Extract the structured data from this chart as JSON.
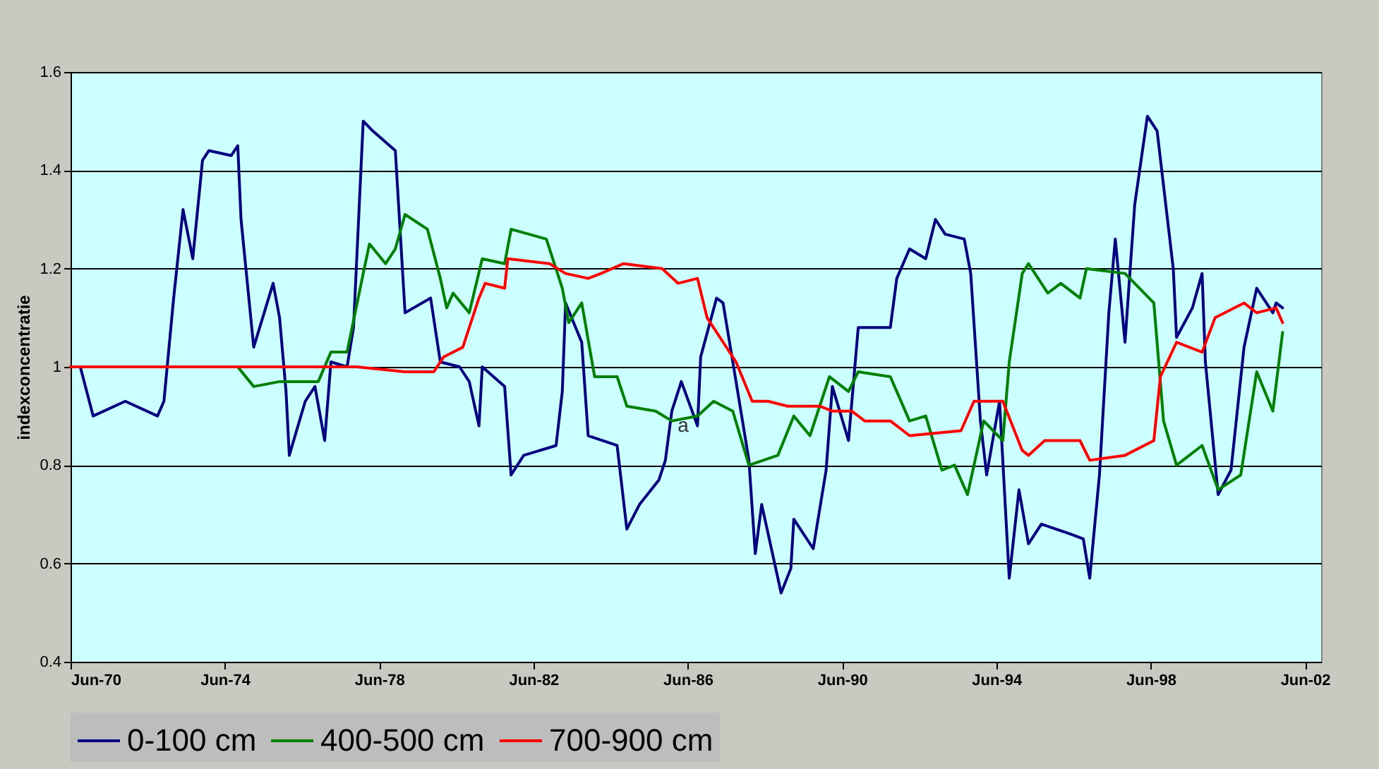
{
  "chart_data": {
    "type": "line",
    "ylabel": "indexconcentratie",
    "xlim": [
      "1970-06-01",
      "2002-11-01"
    ],
    "xticks": [
      {
        "value": "1970-06",
        "label": "Jun-70"
      },
      {
        "value": "1974-06",
        "label": "Jun-74"
      },
      {
        "value": "1978-06",
        "label": "Jun-78"
      },
      {
        "value": "1982-06",
        "label": "Jun-82"
      },
      {
        "value": "1986-06",
        "label": "Jun-86"
      },
      {
        "value": "1990-06",
        "label": "Jun-90"
      },
      {
        "value": "1994-06",
        "label": "Jun-94"
      },
      {
        "value": "1998-06",
        "label": "Jun-98"
      },
      {
        "value": "2002-06",
        "label": "Jun-02"
      }
    ],
    "ylim": [
      0.4,
      1.6
    ],
    "yticks": [
      0.4,
      0.6,
      0.8,
      1,
      1.2,
      1.4,
      1.6
    ],
    "grid": "y",
    "legend": "bottom",
    "annotations": [
      {
        "text": "a",
        "x": "1986-01",
        "y": 0.88
      }
    ],
    "series": [
      {
        "name": "0-100 cm",
        "color": "#000080",
        "x": [
          "1970-06",
          "1970-09",
          "1971-01",
          "1971-11",
          "1972-09",
          "1972-11",
          "1973-02",
          "1973-05",
          "1973-08",
          "1973-11",
          "1974-01",
          "1974-08",
          "1974-10",
          "1974-11",
          "1975-03",
          "1975-09",
          "1975-11",
          "1976-01",
          "1976-02",
          "1976-07",
          "1976-10",
          "1977-01",
          "1977-03",
          "1977-08",
          "1977-10",
          "1978-01",
          "1978-04",
          "1978-11",
          "1979-02",
          "1979-10",
          "1980-01",
          "1980-07",
          "1980-10",
          "1981-01",
          "1981-02",
          "1981-09",
          "1981-11",
          "1982-03",
          "1983-01",
          "1983-03",
          "1983-04",
          "1983-09",
          "1983-11",
          "1984-08",
          "1984-11",
          "1985-03",
          "1985-09",
          "1985-11",
          "1986-01",
          "1986-04",
          "1986-09",
          "1986-10",
          "1987-03",
          "1987-05",
          "1987-09",
          "1988-01",
          "1988-03",
          "1988-05",
          "1988-11",
          "1989-02",
          "1989-03",
          "1989-09",
          "1990-01",
          "1990-03",
          "1990-08",
          "1990-11",
          "1991-09",
          "1991-11",
          "1992-03",
          "1992-08",
          "1992-11",
          "1993-02",
          "1993-08",
          "1993-10",
          "1994-01",
          "1994-03",
          "1994-07",
          "1994-10",
          "1995-01",
          "1995-04",
          "1995-08",
          "1996-05",
          "1996-09",
          "1996-11",
          "1997-02",
          "1997-05",
          "1997-07",
          "1997-10",
          "1998-01",
          "1998-05",
          "1998-08",
          "1999-01",
          "1999-02",
          "1999-07",
          "1999-10",
          "1999-11",
          "2000-03",
          "2000-07",
          "2000-11",
          "2001-03",
          "2001-08",
          "2001-09",
          "2001-11"
        ],
        "values": [
          1.0,
          1.0,
          0.9,
          0.93,
          0.9,
          0.93,
          1.14,
          1.32,
          1.22,
          1.42,
          1.44,
          1.43,
          1.45,
          1.3,
          1.04,
          1.17,
          1.1,
          0.95,
          0.82,
          0.93,
          0.96,
          0.85,
          1.01,
          1.0,
          1.08,
          1.5,
          1.48,
          1.44,
          1.11,
          1.14,
          1.01,
          1.0,
          0.97,
          0.88,
          1.0,
          0.96,
          0.78,
          0.82,
          0.84,
          0.95,
          1.13,
          1.05,
          0.86,
          0.84,
          0.67,
          0.72,
          0.77,
          0.81,
          0.91,
          0.97,
          0.88,
          1.02,
          1.14,
          1.13,
          0.97,
          0.81,
          0.62,
          0.72,
          0.54,
          0.59,
          0.69,
          0.63,
          0.79,
          0.96,
          0.85,
          1.08,
          1.08,
          1.18,
          1.24,
          1.22,
          1.3,
          1.27,
          1.26,
          1.19,
          0.89,
          0.78,
          0.93,
          0.57,
          0.75,
          0.64,
          0.68,
          0.66,
          0.65,
          0.57,
          0.78,
          1.11,
          1.26,
          1.05,
          1.33,
          1.51,
          1.48,
          1.2,
          1.06,
          1.12,
          1.19,
          1.01,
          0.74,
          0.79,
          1.04,
          1.16,
          1.11,
          1.13,
          1.12
        ]
      },
      {
        "name": "400-500 cm",
        "color": "#008000",
        "x": [
          "1970-06",
          "1974-10",
          "1975-03",
          "1975-11",
          "1976-11",
          "1977-03",
          "1977-08",
          "1978-01",
          "1978-03",
          "1978-08",
          "1978-11",
          "1979-02",
          "1979-09",
          "1980-01",
          "1980-03",
          "1980-05",
          "1980-10",
          "1981-02",
          "1981-09",
          "1981-11",
          "1982-10",
          "1983-03",
          "1983-05",
          "1983-09",
          "1984-01",
          "1984-08",
          "1984-11",
          "1985-08",
          "1986-01",
          "1986-09",
          "1987-02",
          "1987-08",
          "1988-01",
          "1988-10",
          "1989-03",
          "1989-08",
          "1990-02",
          "1990-08",
          "1990-11",
          "1991-09",
          "1992-03",
          "1992-08",
          "1993-01",
          "1993-05",
          "1993-09",
          "1994-02",
          "1994-08",
          "1994-10",
          "1995-02",
          "1995-04",
          "1995-10",
          "1996-02",
          "1996-08",
          "1996-10",
          "1997-10",
          "1998-07",
          "1998-10",
          "1999-02",
          "1999-10",
          "2000-03",
          "2000-10",
          "2001-03",
          "2001-08",
          "2001-11"
        ],
        "values": [
          1.0,
          1.0,
          0.96,
          0.97,
          0.97,
          1.03,
          1.03,
          1.19,
          1.25,
          1.21,
          1.24,
          1.31,
          1.28,
          1.18,
          1.12,
          1.15,
          1.11,
          1.22,
          1.21,
          1.28,
          1.26,
          1.16,
          1.09,
          1.13,
          0.98,
          0.98,
          0.92,
          0.91,
          0.89,
          0.9,
          0.93,
          0.91,
          0.8,
          0.82,
          0.9,
          0.86,
          0.98,
          0.95,
          0.99,
          0.98,
          0.89,
          0.9,
          0.79,
          0.8,
          0.74,
          0.89,
          0.85,
          1.01,
          1.19,
          1.21,
          1.15,
          1.17,
          1.14,
          1.2,
          1.19,
          1.13,
          0.89,
          0.8,
          0.84,
          0.75,
          0.78,
          0.99,
          0.91,
          1.07
        ]
      },
      {
        "name": "700-900 cm",
        "color": "#ff0000",
        "x": [
          "1970-06",
          "1977-11",
          "1979-02",
          "1979-11",
          "1980-02",
          "1980-08",
          "1981-01",
          "1981-03",
          "1981-09",
          "1981-10",
          "1982-11",
          "1983-04",
          "1983-11",
          "1984-03",
          "1984-10",
          "1985-10",
          "1986-03",
          "1986-09",
          "1986-12",
          "1987-09",
          "1988-02",
          "1988-07",
          "1989-01",
          "1989-11",
          "1990-03",
          "1990-09",
          "1991-01",
          "1991-09",
          "1992-03",
          "1993-07",
          "1993-11",
          "1994-08",
          "1995-02",
          "1995-04",
          "1995-09",
          "1996-08",
          "1996-11",
          "1997-10",
          "1998-07",
          "1998-09",
          "1999-02",
          "1999-10",
          "2000-02",
          "2000-11",
          "2001-03",
          "2001-09",
          "2001-11"
        ],
        "values": [
          1.0,
          1.0,
          0.99,
          0.99,
          1.02,
          1.04,
          1.14,
          1.17,
          1.16,
          1.22,
          1.21,
          1.19,
          1.18,
          1.19,
          1.21,
          1.2,
          1.17,
          1.18,
          1.1,
          1.01,
          0.93,
          0.93,
          0.92,
          0.92,
          0.91,
          0.91,
          0.89,
          0.89,
          0.86,
          0.87,
          0.93,
          0.93,
          0.83,
          0.82,
          0.85,
          0.85,
          0.81,
          0.82,
          0.85,
          0.98,
          1.05,
          1.03,
          1.1,
          1.13,
          1.11,
          1.12,
          1.09
        ]
      }
    ]
  }
}
